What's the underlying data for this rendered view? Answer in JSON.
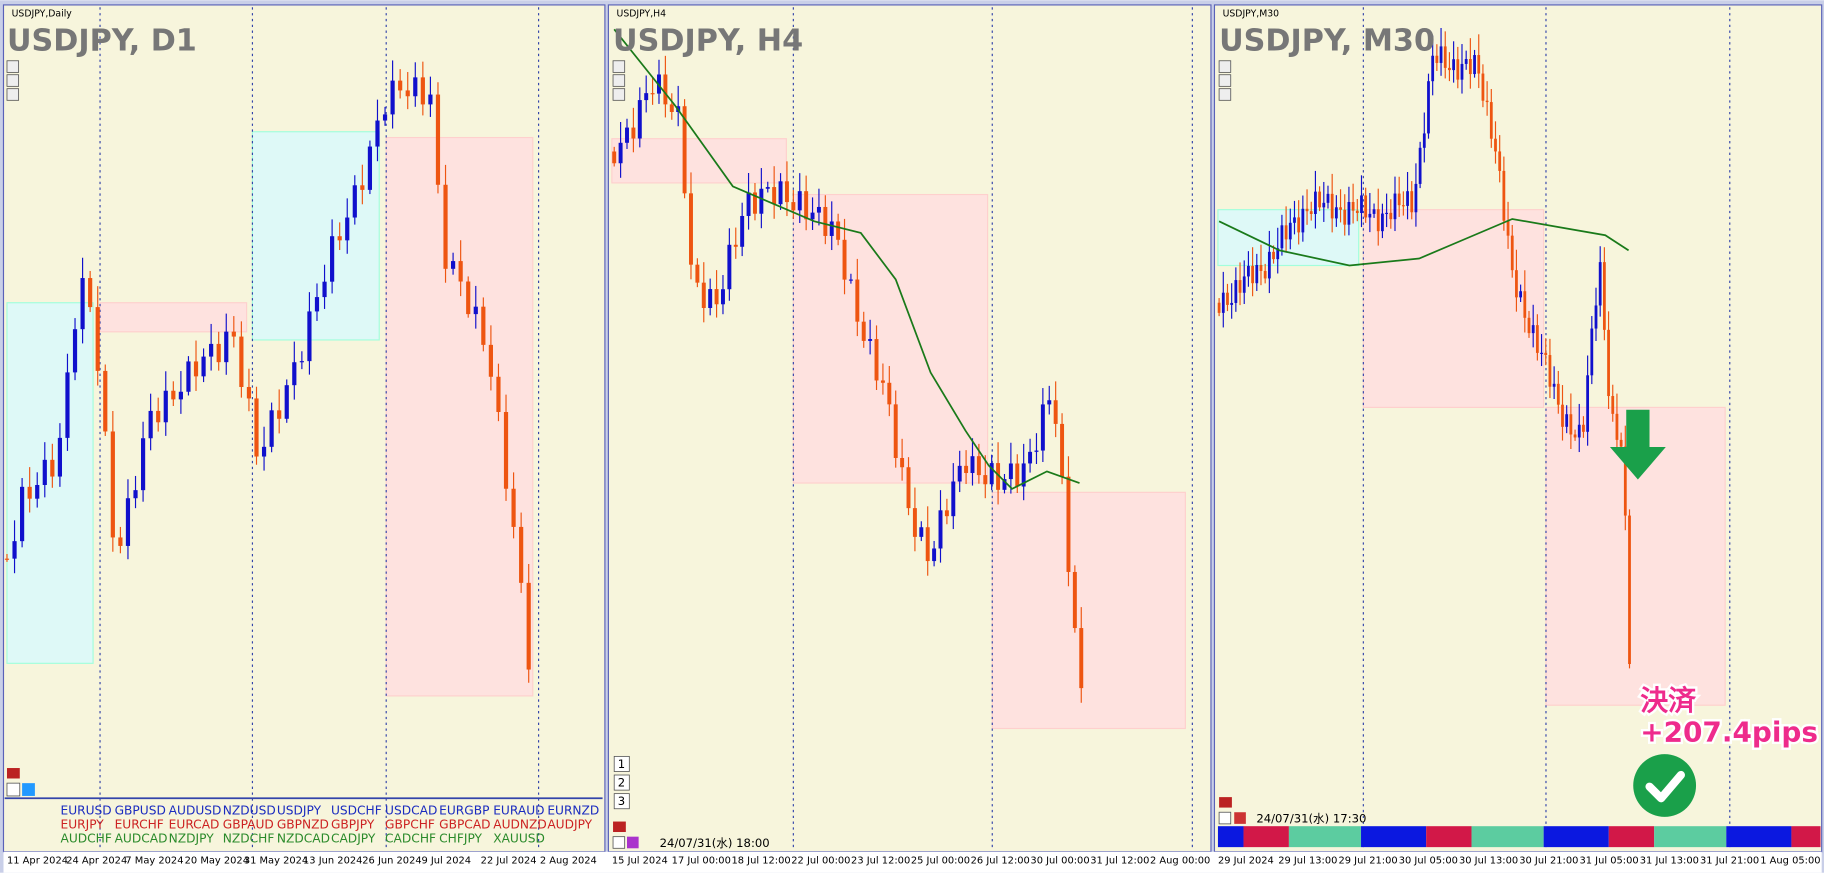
{
  "panels": [
    {
      "window_title": "USDJPY,Daily",
      "symbol": "USDJPY, D1",
      "x_labels": [
        "11 Apr 2024",
        "24 Apr 2024",
        "7 May 2024",
        "20 May 2024",
        "31 May 2024",
        "13 Jun 2024",
        "26 Jun 2024",
        "9 Jul 2024",
        "22 Jul 2024",
        "2 Aug 2024"
      ],
      "pairs": [
        [
          "EURUSD",
          "GBPUSD",
          "AUDUSD",
          "NZDUSD",
          "USDJPY",
          "USDCHF",
          "USDCAD",
          "EURGBP",
          "EURAUD",
          "EURNZD"
        ],
        [
          "EURJPY",
          "EURCHF",
          "EURCAD",
          "GBPAUD",
          "GBPNZD",
          "GBPJPY",
          "GBPCHF",
          "GBPCAD",
          "AUDNZD",
          "AUDJPY"
        ],
        [
          "AUDCHF",
          "AUDCAD",
          "NZDJPY",
          "NZDCHF",
          "NZDCAD",
          "CADJPY",
          "CADCHF",
          "CHFJPY",
          "XAUUSD"
        ]
      ]
    },
    {
      "window_title": "USDJPY,H4",
      "symbol": "USDJPY, H4",
      "x_labels": [
        "15 Jul 2024",
        "17 Jul 00:00",
        "18 Jul 12:00",
        "22 Jul 00:00",
        "23 Jul 12:00",
        "25 Jul 00:00",
        "26 Jul 12:00",
        "30 Jul 00:00",
        "31 Jul 12:00",
        "2 Aug 00:00"
      ],
      "buttons": [
        "1",
        "2",
        "3"
      ],
      "timestamp": "24/07/31(水) 18:00"
    },
    {
      "window_title": "USDJPY,M30",
      "symbol": "USDJPY, M30",
      "x_labels": [
        "29 Jul 2024",
        "29 Jul 13:00",
        "29 Jul 21:00",
        "30 Jul 05:00",
        "30 Jul 13:00",
        "30 Jul 21:00",
        "31 Jul 05:00",
        "31 Jul 13:00",
        "31 Jul 21:00",
        "1 Aug 05:00"
      ],
      "timestamp": "24/07/31(水) 17:30",
      "annotation": {
        "title": "決済",
        "result": "+207.4pips"
      }
    }
  ]
}
